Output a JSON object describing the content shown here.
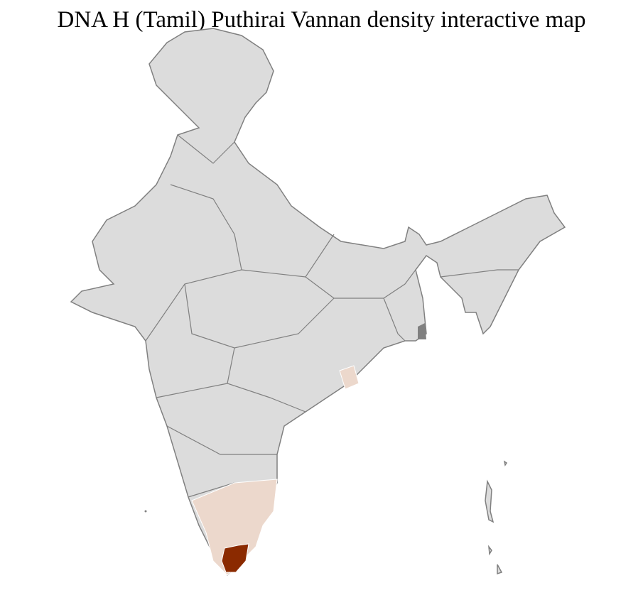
{
  "title": "DNA H (Tamil) Puthirai Vannan density interactive map",
  "colors": {
    "no_data": "#dcdcdc",
    "low_density": "#ecd8cc",
    "high_density": "#8b2a00",
    "state_border": "#808080",
    "district_border": "#ffffff"
  },
  "regions": [
    {
      "name": "low-density-tamil-nadu-kerala",
      "level": "low"
    },
    {
      "name": "low-density-odisha-coast",
      "level": "low"
    },
    {
      "name": "high-density-southern-tamil-nadu",
      "level": "high"
    }
  ]
}
